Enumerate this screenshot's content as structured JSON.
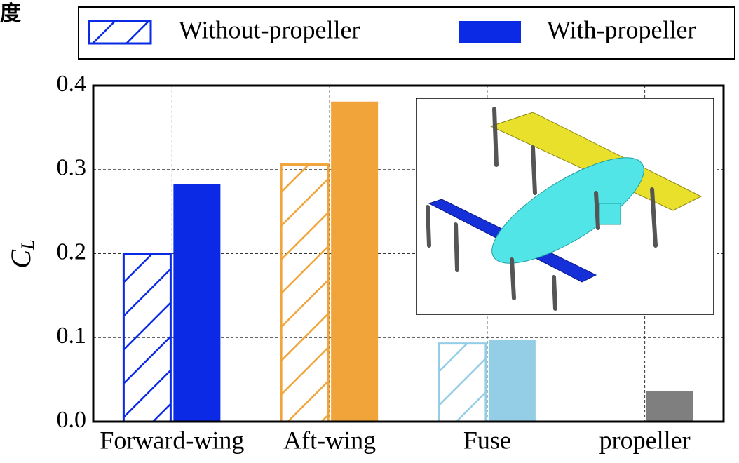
{
  "chart_data": {
    "type": "bar",
    "corner_text": "度",
    "y_label": "C",
    "y_label_subscript": "L",
    "categories": [
      "Forward-wing",
      "Aft-wing",
      "Fuse",
      "propeller"
    ],
    "category_colors": [
      "#0a2ae6",
      "#f0a43a",
      "#93cde6",
      "#7f7f7f"
    ],
    "series": [
      {
        "name": "Without-propeller",
        "color": "#0a2ae6",
        "hatch": true,
        "values": [
          0.2,
          0.306,
          0.093,
          null
        ]
      },
      {
        "name": "With-propeller",
        "color": "#0a2ae6",
        "hatch": false,
        "values": [
          0.283,
          0.381,
          0.097,
          0.036
        ]
      }
    ],
    "ylim": [
      0,
      0.4
    ],
    "yticks": [
      {
        "value": 0,
        "label": "0.0"
      },
      0.1,
      0.2,
      0.3,
      0.4
    ],
    "grid": true
  }
}
